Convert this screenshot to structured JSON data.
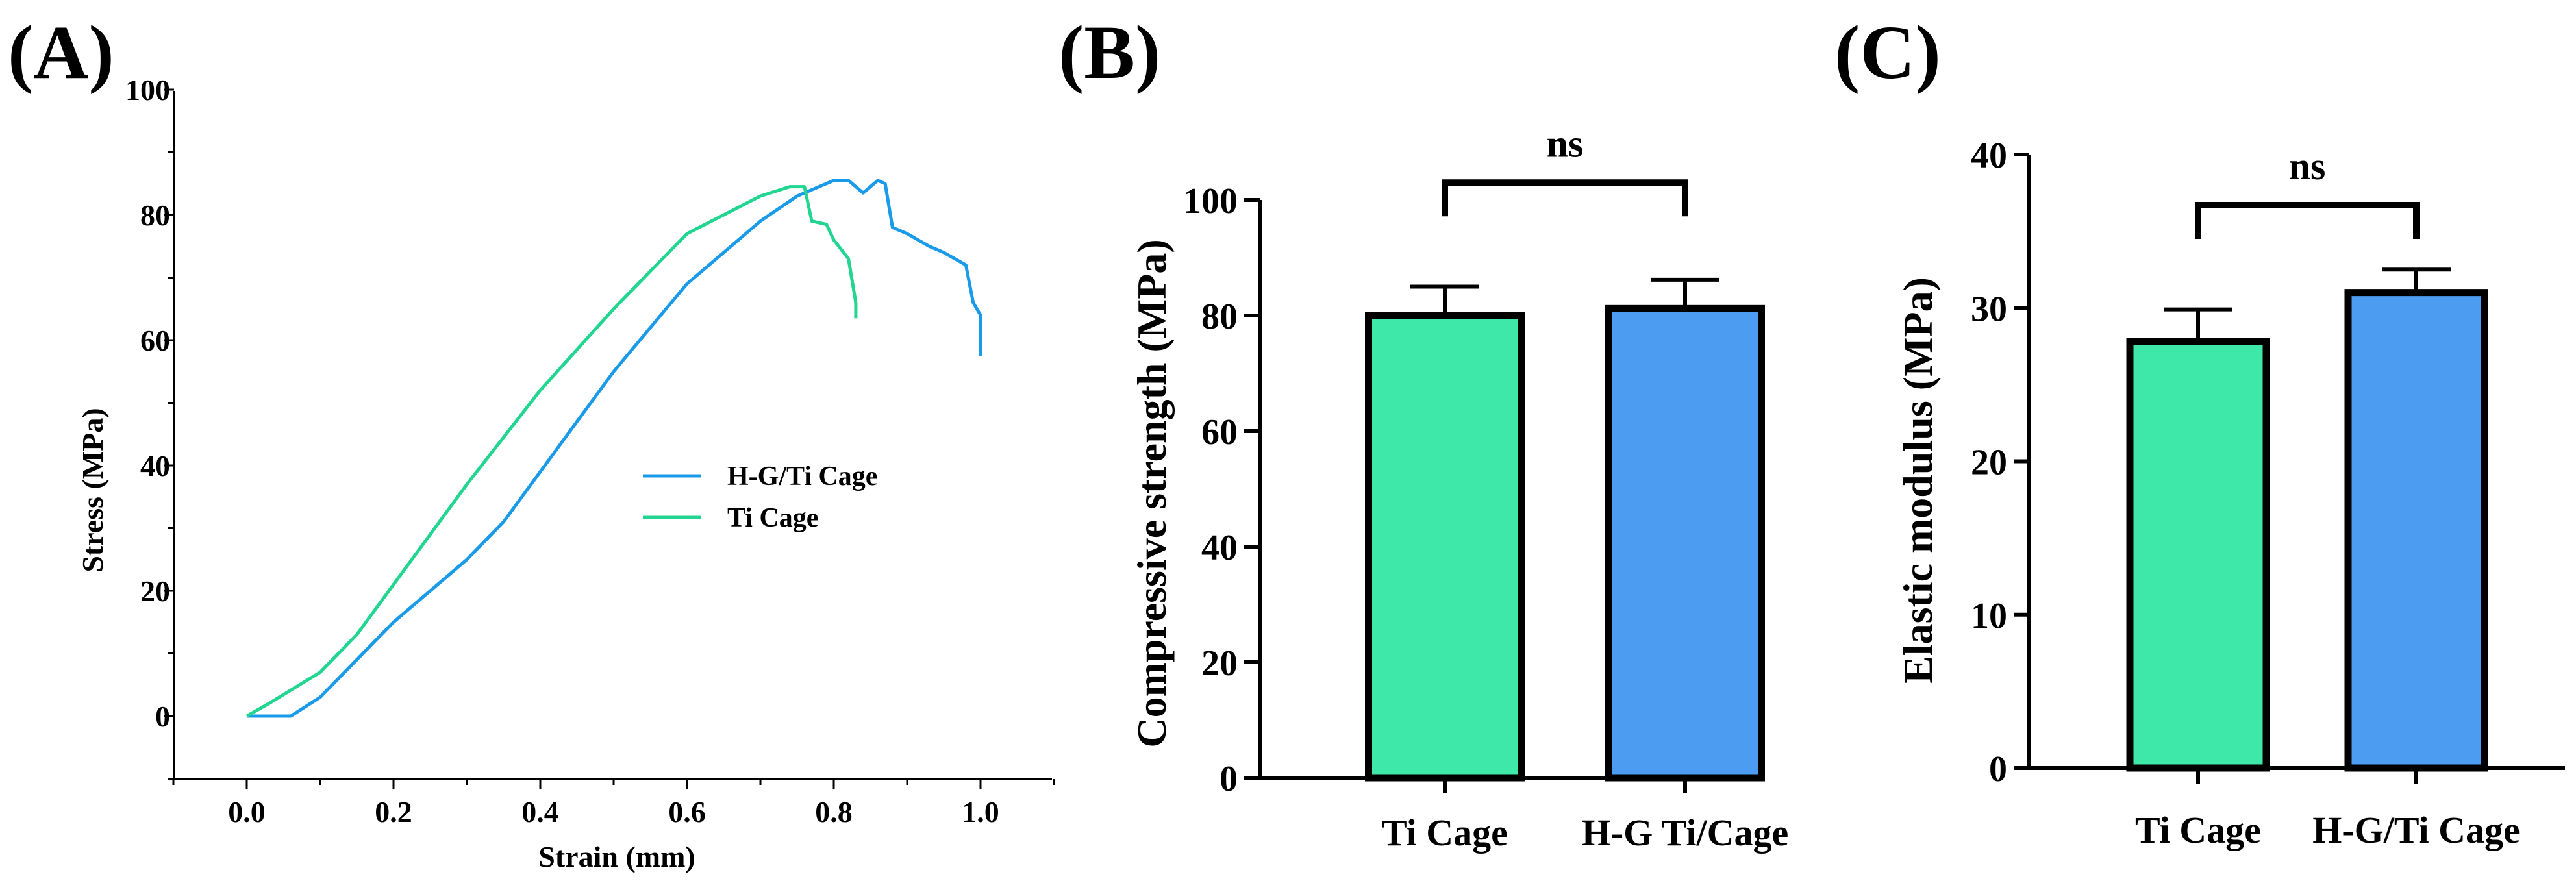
{
  "colors": {
    "ti_cage": "#3DE8A8",
    "hg_ti_cage": "#4C9CF2",
    "line_hg": "#1A9BEA",
    "line_ti": "#22D590",
    "axis": "#000000"
  },
  "chart_data": [
    {
      "panel": "(A)",
      "type": "line",
      "title": "",
      "xlabel": "Strain (mm)",
      "ylabel": "Stress (MPa)",
      "xlim": [
        -0.1,
        1.1
      ],
      "ylim": [
        -10,
        100
      ],
      "xticks": [
        0.0,
        0.2,
        0.4,
        0.6,
        0.8,
        1.0
      ],
      "xtick_labels": [
        "0.0",
        "0.2",
        "0.4",
        "0.6",
        "0.8",
        "1.0"
      ],
      "yticks": [
        0,
        20,
        40,
        60,
        80,
        100
      ],
      "ytick_labels": [
        "0",
        "20",
        "40",
        "60",
        "80",
        "100"
      ],
      "legend_position": "center-right",
      "series": [
        {
          "name": "H-G/Ti Cage",
          "color_key": "line_hg",
          "points": [
            [
              0,
              0
            ],
            [
              0.06,
              0
            ],
            [
              0.1,
              3
            ],
            [
              0.15,
              9
            ],
            [
              0.2,
              15
            ],
            [
              0.3,
              25
            ],
            [
              0.35,
              31
            ],
            [
              0.4,
              39
            ],
            [
              0.5,
              55
            ],
            [
              0.6,
              69
            ],
            [
              0.7,
              79
            ],
            [
              0.75,
              83
            ],
            [
              0.8,
              85.5
            ],
            [
              0.82,
              85.5
            ],
            [
              0.84,
              83.5
            ],
            [
              0.86,
              85.5
            ],
            [
              0.87,
              85
            ],
            [
              0.88,
              78
            ],
            [
              0.9,
              77
            ],
            [
              0.93,
              75
            ],
            [
              0.95,
              74
            ],
            [
              0.98,
              72
            ],
            [
              0.99,
              66
            ],
            [
              1.0,
              64
            ],
            [
              1.0,
              57.5
            ]
          ]
        },
        {
          "name": "Ti Cage",
          "color_key": "line_ti",
          "points": [
            [
              0,
              0
            ],
            [
              0.03,
              2
            ],
            [
              0.1,
              7
            ],
            [
              0.15,
              13
            ],
            [
              0.2,
              21
            ],
            [
              0.3,
              37
            ],
            [
              0.4,
              52
            ],
            [
              0.5,
              65
            ],
            [
              0.6,
              77
            ],
            [
              0.65,
              80
            ],
            [
              0.7,
              83
            ],
            [
              0.74,
              84.5
            ],
            [
              0.76,
              84.5
            ],
            [
              0.77,
              79
            ],
            [
              0.79,
              78.5
            ],
            [
              0.8,
              76
            ],
            [
              0.82,
              73
            ],
            [
              0.83,
              66
            ],
            [
              0.83,
              63.5
            ]
          ]
        }
      ]
    },
    {
      "panel": "(B)",
      "type": "bar",
      "categories": [
        "Ti Cage",
        "H-G Ti/Cage"
      ],
      "values": [
        80,
        81.2
      ],
      "errors": [
        5,
        5
      ],
      "color_keys": [
        "ti_cage",
        "hg_ti_cage"
      ],
      "xlabel": "",
      "ylabel": "Compressive strength (MPa)",
      "ylim": [
        0,
        100
      ],
      "yticks": [
        0,
        20,
        40,
        60,
        80,
        100
      ],
      "ytick_labels": [
        "0",
        "20",
        "40",
        "60",
        "80",
        "100"
      ],
      "significance": {
        "label": "ns",
        "y": 103
      }
    },
    {
      "panel": "(C)",
      "type": "bar",
      "categories": [
        "Ti Cage",
        "H-G/Ti Cage"
      ],
      "values": [
        27.8,
        31
      ],
      "errors": [
        2.1,
        1.5
      ],
      "color_keys": [
        "ti_cage",
        "hg_ti_cage"
      ],
      "xlabel": "",
      "ylabel": "Elastic modulus (MPa)",
      "ylim": [
        0,
        40
      ],
      "yticks": [
        0,
        10,
        20,
        30,
        40
      ],
      "ytick_labels": [
        "0",
        "10",
        "20",
        "30",
        "40"
      ],
      "significance": {
        "label": "ns",
        "y": 36.7
      }
    }
  ]
}
